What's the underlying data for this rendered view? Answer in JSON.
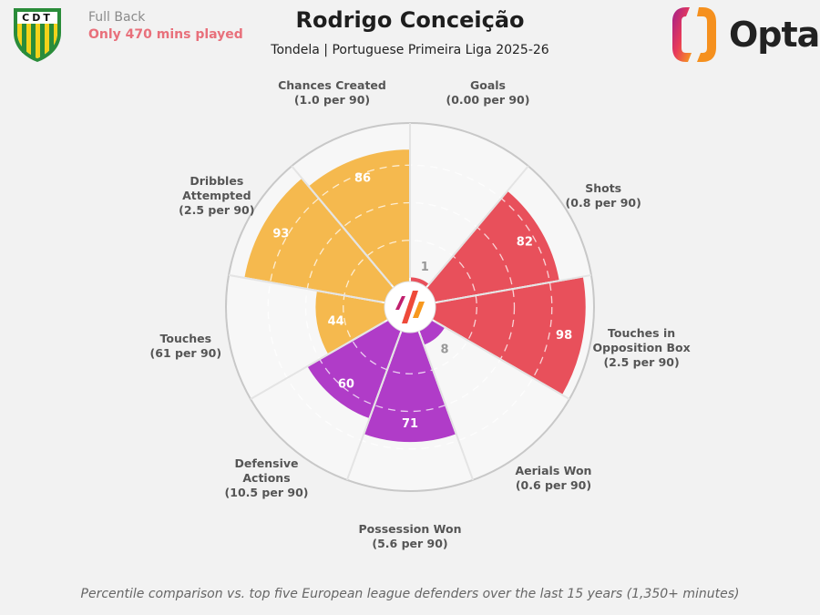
{
  "header": {
    "position": "Full Back",
    "minutes_note": "Only 470 mins played",
    "title": "Rodrigo Conceição",
    "subtitle": "Tondela | Portuguese Primeira Liga 2025-26",
    "club_badge_text": "CDT",
    "brand": "Opta"
  },
  "footer": "Percentile comparison vs. top five European league defenders over the last 15 years (1,350+ minutes)",
  "colors": {
    "attacking": "#e8505b",
    "defending": "#b03cc8",
    "possession": "#f5b94e",
    "background": "#f2f2f2"
  },
  "chart_data": {
    "type": "pizza",
    "range": [
      0,
      100
    ],
    "grid_levels": [
      25,
      50,
      75
    ],
    "categories": [
      {
        "name": "Goals",
        "sub": "(0.00 per 90)",
        "value": 1,
        "group": "attacking"
      },
      {
        "name": "Shots",
        "sub": "(0.8 per 90)",
        "value": 82,
        "group": "attacking"
      },
      {
        "name": "Touches in Opposition Box",
        "name_lines": [
          "Touches in",
          "Opposition Box"
        ],
        "sub": "(2.5 per 90)",
        "value": 98,
        "group": "attacking"
      },
      {
        "name": "Aerials Won",
        "sub": "(0.6 per 90)",
        "value": 8,
        "group": "defending"
      },
      {
        "name": "Possession Won",
        "sub": "(5.6 per 90)",
        "value": 71,
        "group": "defending"
      },
      {
        "name": "Defensive Actions",
        "name_lines": [
          "Defensive",
          "Actions"
        ],
        "sub": "(10.5 per 90)",
        "value": 60,
        "group": "defending"
      },
      {
        "name": "Touches",
        "sub": "(61 per 90)",
        "value": 44,
        "group": "possession"
      },
      {
        "name": "Dribbles Attempted",
        "name_lines": [
          "Dribbles",
          "Attempted"
        ],
        "sub": "(2.5 per 90)",
        "value": 93,
        "group": "possession"
      },
      {
        "name": "Chances Created",
        "sub": "(1.0 per 90)",
        "value": 86,
        "group": "possession"
      }
    ]
  }
}
